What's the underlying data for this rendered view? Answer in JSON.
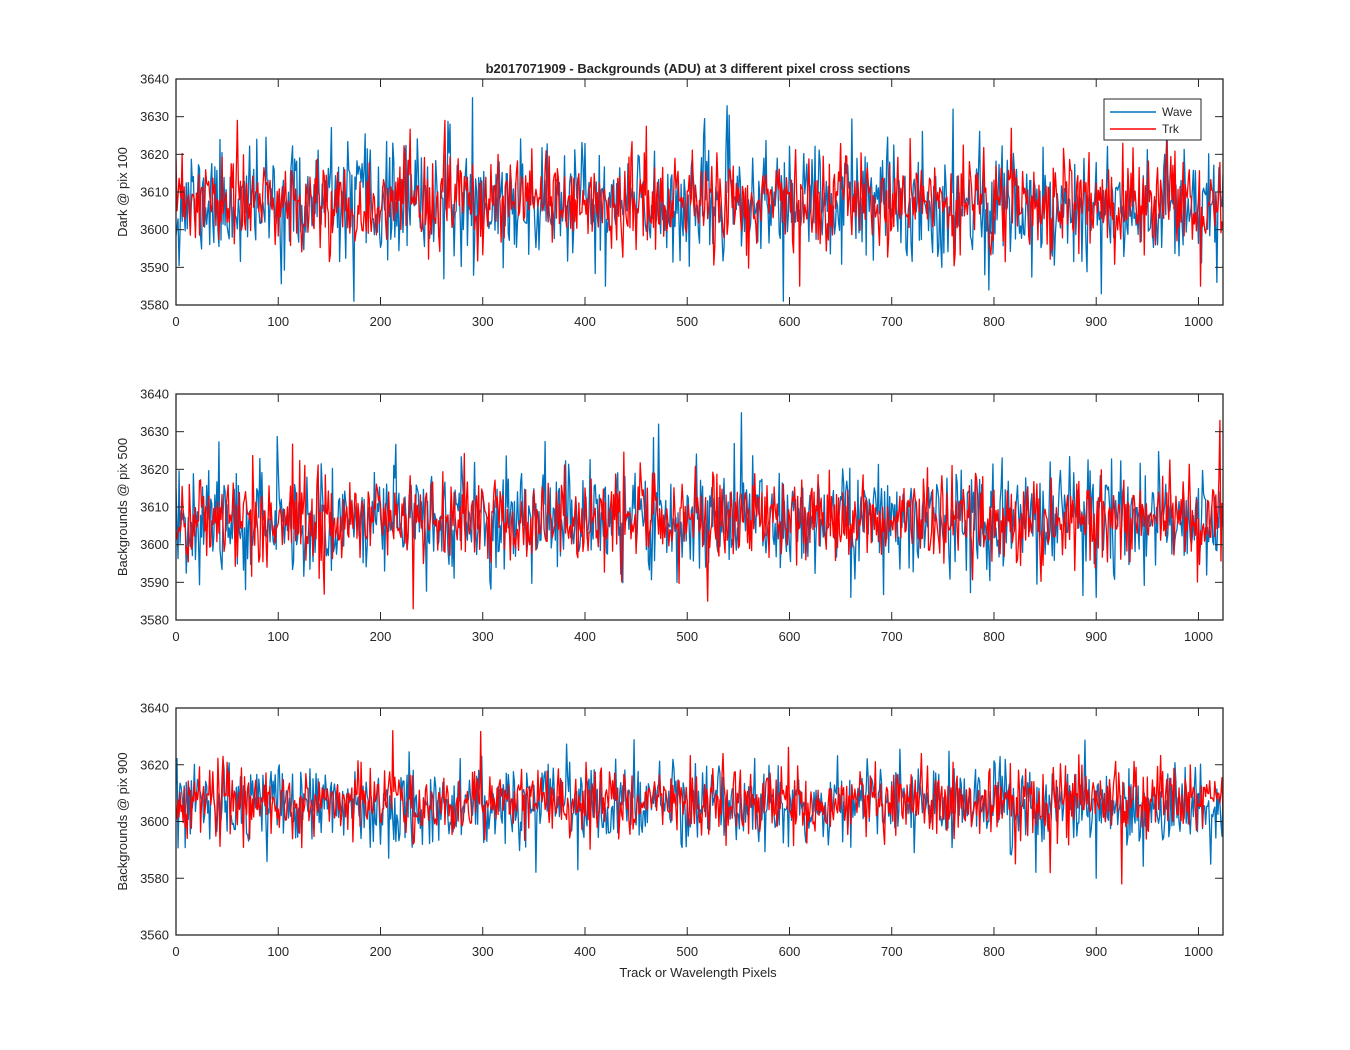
{
  "figure": {
    "title": "b2017071909 - Backgrounds (ADU) at 3 different pixel cross sections",
    "xlabel": "Track or Wavelength Pixels"
  },
  "legend": {
    "placement": "top-right",
    "entries": [
      "Wave",
      "Trk"
    ]
  },
  "colors": {
    "wave": "#0072BD",
    "trk": "#FF0000",
    "axes": "#262626"
  },
  "chart_data": [
    {
      "type": "line",
      "title": "b2017071909 - Backgrounds (ADU) at 3 different pixel cross sections",
      "xlabel": "",
      "ylabel": "Dark @ pix 100",
      "xlim": [
        0,
        1024
      ],
      "ylim": [
        3580,
        3640
      ],
      "xticks": [
        0,
        100,
        200,
        300,
        400,
        500,
        600,
        700,
        800,
        900,
        1000
      ],
      "yticks": [
        3580,
        3590,
        3600,
        3610,
        3620,
        3630,
        3640
      ],
      "grid": false,
      "legend": "top-right",
      "series": [
        {
          "name": "Wave",
          "mean": 3607,
          "sd": 7.5,
          "seed": 11,
          "spikes": [
            [
              174,
              3581
            ],
            [
              290,
              3635
            ],
            [
              420,
              3585
            ],
            [
              760,
              3632
            ],
            [
              795,
              3584
            ],
            [
              905,
              3583
            ],
            [
              1018,
              3586
            ]
          ]
        },
        {
          "name": "Trk",
          "mean": 3607,
          "sd": 6.0,
          "seed": 23,
          "spikes": [
            [
              60,
              3629
            ],
            [
              263,
              3629
            ],
            [
              610,
              3585
            ],
            [
              1002,
              3585
            ],
            [
              1024,
              3600
            ]
          ]
        }
      ]
    },
    {
      "type": "line",
      "xlabel": "",
      "ylabel": "Backgrounds @ pix 500",
      "xlim": [
        0,
        1024
      ],
      "ylim": [
        3580,
        3640
      ],
      "xticks": [
        0,
        100,
        200,
        300,
        400,
        500,
        600,
        700,
        800,
        900,
        1000
      ],
      "yticks": [
        3580,
        3590,
        3600,
        3610,
        3620,
        3630,
        3640
      ],
      "grid": false,
      "series": [
        {
          "name": "Wave",
          "mean": 3607,
          "sd": 7.0,
          "seed": 37,
          "spikes": [
            [
              472,
              3632
            ],
            [
              553,
              3635
            ],
            [
              660,
              3586
            ],
            [
              900,
              3586
            ]
          ]
        },
        {
          "name": "Trk",
          "mean": 3607,
          "sd": 6.0,
          "seed": 41,
          "spikes": [
            [
              232,
              3583
            ],
            [
              520,
              3585
            ],
            [
              1021,
              3633
            ]
          ]
        }
      ]
    },
    {
      "type": "line",
      "xlabel": "Track or Wavelength Pixels",
      "ylabel": "Backgrounds @ pix 900",
      "xlim": [
        0,
        1024
      ],
      "ylim": [
        3560,
        3640
      ],
      "xticks": [
        0,
        100,
        200,
        300,
        400,
        500,
        600,
        700,
        800,
        900,
        1000
      ],
      "yticks": [
        3560,
        3580,
        3600,
        3620,
        3640
      ],
      "grid": false,
      "series": [
        {
          "name": "Wave",
          "mean": 3606,
          "sd": 7.0,
          "seed": 53,
          "spikes": [
            [
              393,
              3583
            ],
            [
              900,
              3580
            ],
            [
              1012,
              3585
            ]
          ]
        },
        {
          "name": "Trk",
          "mean": 3607,
          "sd": 6.0,
          "seed": 67,
          "spikes": [
            [
              212,
              3632
            ],
            [
              925,
              3578
            ],
            [
              855,
              3582
            ]
          ]
        }
      ]
    }
  ]
}
